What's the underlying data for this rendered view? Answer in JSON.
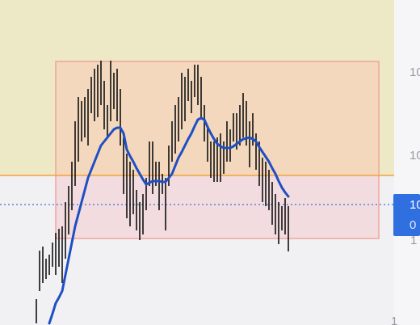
{
  "chart_data": {
    "type": "range",
    "ylim": [
      0,
      100.5
    ],
    "bar_color": "#111111",
    "highs": [
      8,
      23,
      24.25,
      20.5,
      21.75,
      25.5,
      28.5,
      29.75,
      30.5,
      38,
      43,
      50.5,
      63,
      70.5,
      69.25,
      70.5,
      73,
      76.75,
      79.25,
      80.5,
      81.75,
      75.5,
      68,
      81.75,
      78,
      79.25,
      73,
      58,
      53,
      50.5,
      48,
      41.75,
      38,
      40.5,
      45.5,
      56.75,
      56.75,
      50.5,
      50.5,
      46.75,
      45.5,
      55.5,
      63,
      68,
      70.5,
      78,
      76.75,
      79.25,
      75.5,
      80.5,
      80.5,
      76.75,
      68,
      61.75,
      56.75,
      56.75,
      58,
      59.25,
      56.75,
      63,
      60.5,
      65.5,
      65.5,
      68,
      71.75,
      69.25,
      63,
      65.5,
      59.25,
      56.75,
      51.75,
      50.5,
      48,
      44.25,
      40.5,
      38,
      36.75,
      39.25,
      36.75
    ],
    "lows": [
      0.5,
      10.5,
      13,
      14.25,
      15.5,
      18,
      15.5,
      18,
      13,
      20.5,
      28,
      35.5,
      43,
      50.5,
      56.75,
      58,
      55.5,
      65.5,
      63,
      64.25,
      68,
      60.5,
      58,
      63,
      66.75,
      63,
      55.5,
      40.5,
      33,
      30.5,
      34.25,
      29.25,
      26.25,
      28,
      35.5,
      43,
      40.5,
      43,
      35.5,
      40.5,
      29.25,
      43,
      50.5,
      53,
      56.75,
      60.5,
      63,
      69.25,
      65.5,
      70.5,
      68,
      64.25,
      56.75,
      50.5,
      45.5,
      44.25,
      44.25,
      44.25,
      46.75,
      50.5,
      50.5,
      56.75,
      54.25,
      55.5,
      58,
      55.5,
      48.75,
      55.5,
      48,
      43,
      38,
      36.75,
      35.5,
      31,
      28,
      25,
      29.25,
      28,
      22.75
    ],
    "moving_average": {
      "color": "#1f4fc4",
      "values": [
        null,
        null,
        null,
        null,
        0.5,
        3.5,
        6.75,
        8.5,
        10.5,
        15.5,
        20.5,
        25.5,
        30.5,
        34.25,
        38,
        41.75,
        45.5,
        48,
        50.5,
        53,
        55.5,
        56.75,
        58,
        59.25,
        60.5,
        61,
        61,
        59.25,
        54.25,
        52.25,
        50.5,
        48.5,
        46.75,
        45,
        43.5,
        44,
        44.5,
        44.5,
        44.5,
        44.25,
        44.25,
        45.5,
        46.75,
        49.25,
        51.75,
        53.5,
        55.5,
        57.5,
        59.25,
        61.5,
        63.5,
        64,
        63.5,
        61.25,
        59.25,
        57.5,
        56,
        55.25,
        54.75,
        54.75,
        54.75,
        55.25,
        56,
        56.75,
        57.5,
        57.75,
        58,
        57.5,
        56.75,
        55,
        53.5,
        52,
        50.5,
        48.5,
        46.75,
        44.5,
        42.5,
        41,
        39.75
      ]
    },
    "axis_labels": [
      "10",
      "10",
      "1",
      "1"
    ],
    "price_label": [
      "10",
      "0"
    ]
  }
}
